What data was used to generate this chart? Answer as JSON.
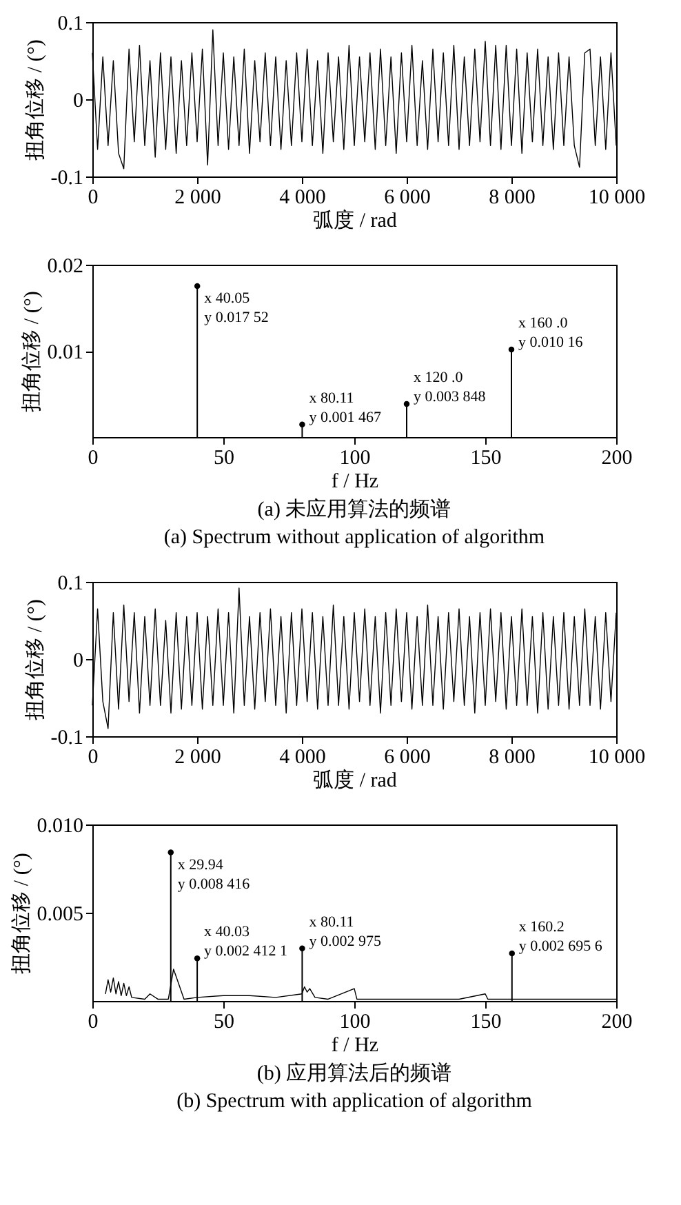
{
  "chart_data": [
    {
      "type": "line",
      "xlabel": "弧度 / rad",
      "ylabel": "扭角位移 / (°)",
      "xlim": [
        0,
        10000
      ],
      "ylim": [
        -0.1,
        0.1
      ],
      "xticks": [
        0,
        {
          "value": 2000,
          "label": "2 000"
        },
        {
          "value": 4000,
          "label": "4 000"
        },
        {
          "value": 6000,
          "label": "6 000"
        },
        {
          "value": 8000,
          "label": "8 000"
        },
        {
          "value": 10000,
          "label": "10 000"
        }
      ],
      "yticks": [
        -0.1,
        0,
        0.1
      ],
      "series": [
        {
          "color": "#000000",
          "x": [
            0,
            100,
            200,
            300,
            400,
            500,
            600,
            700,
            800,
            900,
            1000,
            1100,
            1200,
            1300,
            1400,
            1500,
            1600,
            1700,
            1800,
            1900,
            2000,
            2100,
            2200,
            2300,
            2400,
            2500,
            2600,
            2700,
            2800,
            2900,
            3000,
            3100,
            3200,
            3300,
            3400,
            3500,
            3600,
            3700,
            3800,
            3900,
            4000,
            4100,
            4200,
            4300,
            4400,
            4500,
            4600,
            4700,
            4800,
            4900,
            5000,
            5100,
            5200,
            5300,
            5400,
            5500,
            5600,
            5700,
            5800,
            5900,
            6000,
            6100,
            6200,
            6300,
            6400,
            6500,
            6600,
            6700,
            6800,
            6900,
            7000,
            7100,
            7200,
            7300,
            7400,
            7500,
            7600,
            7700,
            7800,
            7900,
            8000,
            8100,
            8200,
            8300,
            8400,
            8500,
            8600,
            8700,
            8800,
            8900,
            9000,
            9100,
            9200,
            9300,
            9400,
            9500,
            9600,
            9700,
            9800,
            9900,
            10000
          ],
          "values": [
            0.06,
            -0.065,
            0.055,
            -0.06,
            0.05,
            -0.07,
            -0.09,
            0.065,
            -0.055,
            0.07,
            -0.06,
            0.05,
            -0.075,
            0.06,
            -0.065,
            0.055,
            -0.07,
            0.05,
            -0.06,
            0.06,
            -0.055,
            0.065,
            -0.085,
            0.09,
            -0.06,
            0.06,
            -0.065,
            0.055,
            -0.06,
            0.065,
            -0.07,
            0.05,
            -0.055,
            0.06,
            -0.06,
            0.055,
            -0.065,
            0.05,
            -0.06,
            0.06,
            -0.055,
            0.065,
            -0.06,
            0.05,
            -0.07,
            0.06,
            -0.055,
            0.055,
            -0.065,
            0.07,
            -0.06,
            0.055,
            -0.055,
            0.06,
            -0.065,
            0.065,
            -0.06,
            0.055,
            -0.07,
            0.06,
            -0.055,
            0.07,
            -0.06,
            0.05,
            -0.065,
            0.065,
            -0.055,
            0.06,
            -0.06,
            0.07,
            -0.065,
            0.055,
            -0.06,
            0.065,
            -0.055,
            0.075,
            -0.06,
            0.07,
            -0.065,
            0.07,
            -0.06,
            0.065,
            -0.07,
            0.06,
            -0.055,
            0.065,
            -0.06,
            0.055,
            -0.065,
            0.06,
            -0.06,
            0.055,
            -0.06,
            -0.088,
            0.06,
            0.065,
            -0.06,
            0.055,
            -0.065,
            0.06,
            -0.06
          ]
        }
      ]
    },
    {
      "type": "lollipop",
      "xlabel": "f / Hz",
      "ylabel": "扭角位移 / (°)",
      "xlim": [
        0,
        200
      ],
      "ylim": [
        0,
        0.02
      ],
      "xticks": [
        0,
        50,
        100,
        150,
        200
      ],
      "yticks": [
        0.01,
        0.02
      ],
      "series": [
        {
          "color": "#000000",
          "marker": "circle",
          "x": [
            40.05,
            80.11,
            120.0,
            160.0
          ],
          "values": [
            0.01752,
            0.001467,
            0.003848,
            0.01016
          ]
        }
      ],
      "annotations": [
        {
          "text": "x 40.05",
          "x": 40.05,
          "y": 0.01752
        },
        {
          "text": "y 0.017 52",
          "x": 40.05,
          "y": 0.01752
        },
        {
          "text": "x 80.11",
          "x": 80.11,
          "y": 0.001467
        },
        {
          "text": "y 0.001 467",
          "x": 80.11,
          "y": 0.001467
        },
        {
          "text": "x 120 .0",
          "x": 120.0,
          "y": 0.003848
        },
        {
          "text": "y 0.003 848",
          "x": 120.0,
          "y": 0.003848
        },
        {
          "text": "x 160 .0",
          "x": 160.0,
          "y": 0.01016
        },
        {
          "text": "y 0.010 16",
          "x": 160.0,
          "y": 0.01016
        },
        "(a)  未应用算法的频谱",
        "(a)  Spectrum without application of algorithm"
      ]
    },
    {
      "type": "line",
      "xlabel": "弧度 / rad",
      "ylabel": "扭角位移 / (°)",
      "xlim": [
        0,
        10000
      ],
      "ylim": [
        -0.1,
        0.1
      ],
      "xticks": [
        0,
        {
          "value": 2000,
          "label": "2 000"
        },
        {
          "value": 4000,
          "label": "4 000"
        },
        {
          "value": 6000,
          "label": "6 000"
        },
        {
          "value": 8000,
          "label": "8 000"
        },
        {
          "value": 10000,
          "label": "10 000"
        }
      ],
      "yticks": [
        -0.1,
        0,
        0.1
      ],
      "series": [
        {
          "color": "#000000",
          "x": [
            0,
            100,
            200,
            300,
            400,
            500,
            600,
            700,
            800,
            900,
            1000,
            1100,
            1200,
            1300,
            1400,
            1500,
            1600,
            1700,
            1800,
            1900,
            2000,
            2100,
            2200,
            2300,
            2400,
            2500,
            2600,
            2700,
            2800,
            2900,
            3000,
            3100,
            3200,
            3300,
            3400,
            3500,
            3600,
            3700,
            3800,
            3900,
            4000,
            4100,
            4200,
            4300,
            4400,
            4500,
            4600,
            4700,
            4800,
            4900,
            5000,
            5100,
            5200,
            5300,
            5400,
            5500,
            5600,
            5700,
            5800,
            5900,
            6000,
            6100,
            6200,
            6300,
            6400,
            6500,
            6600,
            6700,
            6800,
            6900,
            7000,
            7100,
            7200,
            7300,
            7400,
            7500,
            7600,
            7700,
            7800,
            7900,
            8000,
            8100,
            8200,
            8300,
            8400,
            8500,
            8600,
            8700,
            8800,
            8900,
            9000,
            9100,
            9200,
            9300,
            9400,
            9500,
            9600,
            9700,
            9800,
            9900,
            10000
          ],
          "values": [
            -0.06,
            0.065,
            -0.055,
            -0.09,
            0.06,
            -0.065,
            0.07,
            -0.055,
            0.06,
            -0.07,
            0.055,
            -0.06,
            0.065,
            -0.06,
            0.05,
            -0.07,
            0.06,
            -0.065,
            0.055,
            -0.06,
            0.06,
            -0.065,
            0.055,
            -0.06,
            0.065,
            -0.06,
            0.06,
            -0.07,
            0.092,
            -0.06,
            0.055,
            -0.065,
            0.06,
            -0.055,
            0.065,
            -0.06,
            0.055,
            -0.07,
            0.06,
            -0.06,
            0.065,
            -0.055,
            0.06,
            -0.065,
            0.055,
            -0.06,
            0.07,
            -0.06,
            0.055,
            -0.065,
            0.06,
            -0.055,
            0.065,
            -0.06,
            0.055,
            -0.07,
            0.06,
            -0.06,
            0.065,
            -0.055,
            0.06,
            -0.065,
            0.055,
            -0.06,
            0.07,
            -0.06,
            0.055,
            -0.065,
            0.06,
            -0.055,
            0.065,
            -0.06,
            0.055,
            -0.07,
            0.06,
            -0.06,
            0.065,
            -0.055,
            0.06,
            -0.065,
            0.055,
            -0.06,
            0.065,
            -0.06,
            0.055,
            -0.07,
            0.06,
            -0.065,
            0.055,
            -0.06,
            0.06,
            -0.065,
            0.055,
            -0.06,
            0.065,
            -0.06,
            0.055,
            -0.065,
            0.06,
            -0.055,
            0.06
          ]
        }
      ]
    },
    {
      "type": "lollipop",
      "xlabel": "f / Hz",
      "ylabel": "扭角位移 / (°)",
      "xlim": [
        0,
        200
      ],
      "ylim": [
        0,
        0.01
      ],
      "xticks": [
        0,
        50,
        100,
        150,
        200
      ],
      "yticks": [
        {
          "value": 0.005,
          "label": "0.005"
        },
        {
          "value": 0.01,
          "label": "0.010"
        }
      ],
      "series": [
        {
          "type": "line",
          "color": "#000000",
          "x": [
            5,
            6,
            7,
            8,
            9,
            10,
            11,
            12,
            13,
            14,
            15,
            20,
            22,
            25,
            29,
            31,
            35,
            40,
            50,
            60,
            70,
            80,
            81,
            82,
            83,
            85,
            90,
            100,
            101,
            110,
            120,
            130,
            140,
            150,
            151,
            160,
            170,
            180,
            190,
            200
          ],
          "values": [
            0.0004,
            0.0012,
            0.0005,
            0.0013,
            0.0004,
            0.0011,
            0.0003,
            0.001,
            0.0003,
            0.0008,
            0.0002,
            0.0001,
            0.0004,
            0.0001,
            0.0001,
            0.0018,
            0.0001,
            0.0002,
            0.0003,
            0.0003,
            0.0002,
            0.0004,
            0.0008,
            0.0005,
            0.0007,
            0.0002,
            0.0001,
            0.0007,
            0.0001,
            0.0001,
            0.0001,
            0.0001,
            0.0001,
            0.0004,
            0.0001,
            0.0001,
            0.0001,
            0.0001,
            0.0001,
            0.0001
          ]
        },
        {
          "color": "#000000",
          "marker": "circle",
          "x": [
            29.94,
            40.03,
            80.11,
            160.2
          ],
          "values": [
            0.008416,
            0.0024121,
            0.002975,
            0.0026956
          ]
        }
      ],
      "annotations": [
        {
          "text": "x 29.94",
          "x": 29.94,
          "y": 0.008416
        },
        {
          "text": "y 0.008 416",
          "x": 29.94,
          "y": 0.008416
        },
        {
          "text": "x 40.03",
          "x": 40.03,
          "y": 0.0024121
        },
        {
          "text": "y 0.002 412 1",
          "x": 40.03,
          "y": 0.0024121
        },
        {
          "text": "x 80.11",
          "x": 80.11,
          "y": 0.002975
        },
        {
          "text": "y 0.002 975",
          "x": 80.11,
          "y": 0.002975
        },
        {
          "text": "x 160.2",
          "x": 160.2,
          "y": 0.0026956
        },
        {
          "text": "y 0.002 695 6",
          "x": 160.2,
          "y": 0.0026956
        },
        "(b)  应用算法后的频谱",
        "(b)  Spectrum with application of algorithm"
      ]
    }
  ]
}
